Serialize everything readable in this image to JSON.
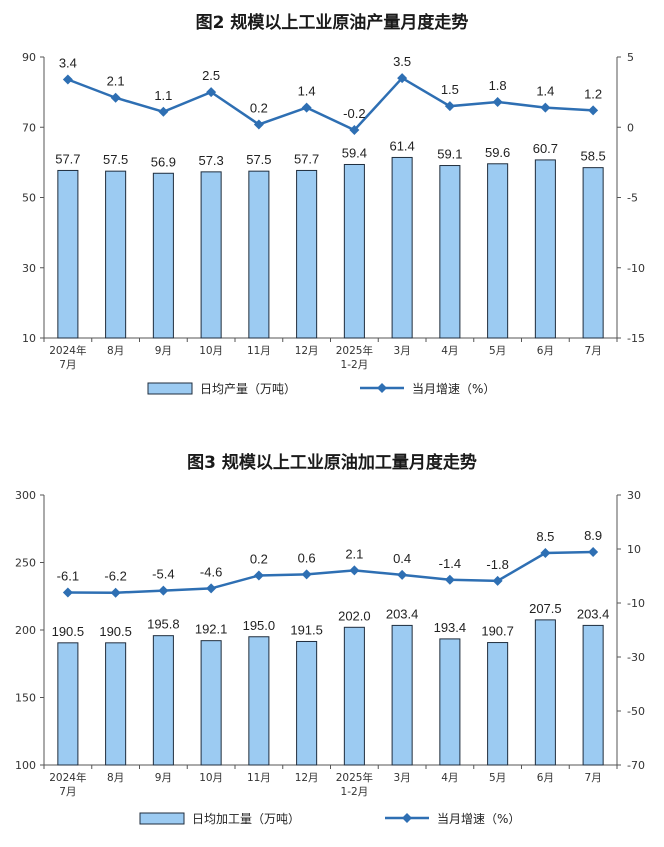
{
  "chart_data": [
    {
      "type": "bar",
      "title": "图2  规模以上工业原油产量月度走势",
      "categories": [
        [
          "2024年",
          "7月"
        ],
        [
          "8月"
        ],
        [
          "9月"
        ],
        [
          "10月"
        ],
        [
          "11月"
        ],
        [
          "12月"
        ],
        [
          "2025年",
          "1-2月"
        ],
        [
          "3月"
        ],
        [
          "4月"
        ],
        [
          "5月"
        ],
        [
          "6月"
        ],
        [
          "7月"
        ]
      ],
      "series": [
        {
          "name": "日均产量（万吨）",
          "type": "bar",
          "axis": "left",
          "values": [
            57.7,
            57.5,
            56.9,
            57.3,
            57.5,
            57.7,
            59.4,
            61.4,
            59.1,
            59.6,
            60.7,
            58.5
          ]
        },
        {
          "name": "当月增速（%）",
          "type": "line",
          "axis": "right",
          "values": [
            3.4,
            2.1,
            1.1,
            2.5,
            0.2,
            1.4,
            -0.2,
            3.5,
            1.5,
            1.8,
            1.4,
            1.2
          ]
        }
      ],
      "ylim_left": [
        10,
        90
      ],
      "yticks_left": [
        10,
        30,
        50,
        70,
        90
      ],
      "ylim_right": [
        -15,
        5
      ],
      "yticks_right": [
        -15,
        -10,
        -5,
        0,
        5
      ],
      "legend_position": "bottom",
      "colors": {
        "bar_fill": "#9ccbf2",
        "bar_stroke": "#1f2d3d",
        "line": "#2e6fb3"
      }
    },
    {
      "type": "bar",
      "title": "图3  规模以上工业原油加工量月度走势",
      "categories": [
        [
          "2024年",
          "7月"
        ],
        [
          "8月"
        ],
        [
          "9月"
        ],
        [
          "10月"
        ],
        [
          "11月"
        ],
        [
          "12月"
        ],
        [
          "2025年",
          "1-2月"
        ],
        [
          "3月"
        ],
        [
          "4月"
        ],
        [
          "5月"
        ],
        [
          "6月"
        ],
        [
          "7月"
        ]
      ],
      "series": [
        {
          "name": "日均加工量（万吨）",
          "type": "bar",
          "axis": "left",
          "values": [
            190.5,
            190.5,
            195.8,
            192.1,
            195.0,
            191.5,
            202.0,
            203.4,
            193.4,
            190.7,
            207.5,
            203.4
          ]
        },
        {
          "name": "当月增速（%）",
          "type": "line",
          "axis": "right",
          "values": [
            -6.1,
            -6.2,
            -5.4,
            -4.6,
            0.2,
            0.6,
            2.1,
            0.4,
            -1.4,
            -1.8,
            8.5,
            8.9
          ]
        }
      ],
      "ylim_left": [
        100,
        300
      ],
      "yticks_left": [
        100,
        150,
        200,
        250,
        300
      ],
      "ylim_right": [
        -70,
        30
      ],
      "yticks_right": [
        -70,
        -50,
        -30,
        -10,
        10,
        30
      ],
      "legend_position": "bottom",
      "colors": {
        "bar_fill": "#9ccbf2",
        "bar_stroke": "#1f2d3d",
        "line": "#2e6fb3"
      }
    }
  ]
}
